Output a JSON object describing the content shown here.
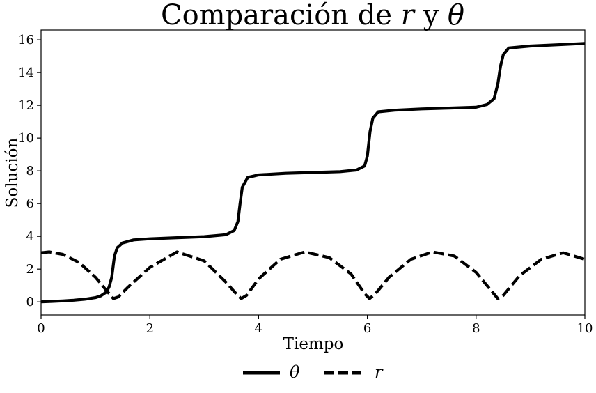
{
  "chart_data": {
    "type": "line",
    "title": {
      "prefix": "Comparación de ",
      "var1": "r",
      "mid": " y ",
      "var2": "θ"
    },
    "xlabel": "Tiempo",
    "ylabel": "Solución",
    "xlim": [
      0,
      10
    ],
    "ylim": [
      -0.8,
      16.6
    ],
    "xticks": [
      0,
      2,
      4,
      6,
      8,
      10
    ],
    "yticks": [
      0,
      2,
      4,
      6,
      8,
      10,
      12,
      14,
      16
    ],
    "grid": false,
    "legend_position": "bottom-center",
    "series": [
      {
        "name": "θ",
        "style": "solid",
        "color": "#000000",
        "x": [
          0,
          0.2,
          0.4,
          0.6,
          0.8,
          1.0,
          1.1,
          1.2,
          1.25,
          1.3,
          1.35,
          1.4,
          1.5,
          1.7,
          2.0,
          2.5,
          3.0,
          3.4,
          3.55,
          3.62,
          3.66,
          3.7,
          3.8,
          4.0,
          4.5,
          5.0,
          5.5,
          5.8,
          5.95,
          6.0,
          6.05,
          6.1,
          6.2,
          6.5,
          7.0,
          7.5,
          8.0,
          8.2,
          8.33,
          8.4,
          8.45,
          8.5,
          8.6,
          9.0,
          9.5,
          10.0
        ],
        "y": [
          0.0,
          0.03,
          0.06,
          0.1,
          0.16,
          0.26,
          0.37,
          0.6,
          0.9,
          1.5,
          2.8,
          3.3,
          3.6,
          3.78,
          3.85,
          3.92,
          3.98,
          4.1,
          4.35,
          4.9,
          6.0,
          7.0,
          7.6,
          7.75,
          7.85,
          7.9,
          7.95,
          8.05,
          8.3,
          8.9,
          10.4,
          11.2,
          11.6,
          11.7,
          11.78,
          11.83,
          11.88,
          12.05,
          12.4,
          13.3,
          14.4,
          15.1,
          15.5,
          15.62,
          15.7,
          15.78
        ]
      },
      {
        "name": "r",
        "style": "dashed",
        "color": "#000000",
        "x": [
          0,
          0.15,
          0.4,
          0.7,
          1.0,
          1.2,
          1.33,
          1.42,
          1.6,
          2.0,
          2.5,
          3.0,
          3.4,
          3.6,
          3.68,
          3.78,
          4.0,
          4.4,
          4.85,
          5.3,
          5.7,
          5.95,
          6.04,
          6.15,
          6.4,
          6.8,
          7.2,
          7.6,
          8.0,
          8.3,
          8.4,
          8.5,
          8.8,
          9.2,
          9.6,
          10.0
        ],
        "y": [
          3.0,
          3.05,
          2.9,
          2.4,
          1.5,
          0.7,
          0.2,
          0.3,
          0.9,
          2.1,
          3.05,
          2.5,
          1.2,
          0.45,
          0.2,
          0.4,
          1.4,
          2.6,
          3.05,
          2.7,
          1.7,
          0.5,
          0.2,
          0.5,
          1.5,
          2.6,
          3.05,
          2.8,
          1.8,
          0.6,
          0.2,
          0.4,
          1.6,
          2.6,
          3.0,
          2.6
        ]
      }
    ]
  }
}
